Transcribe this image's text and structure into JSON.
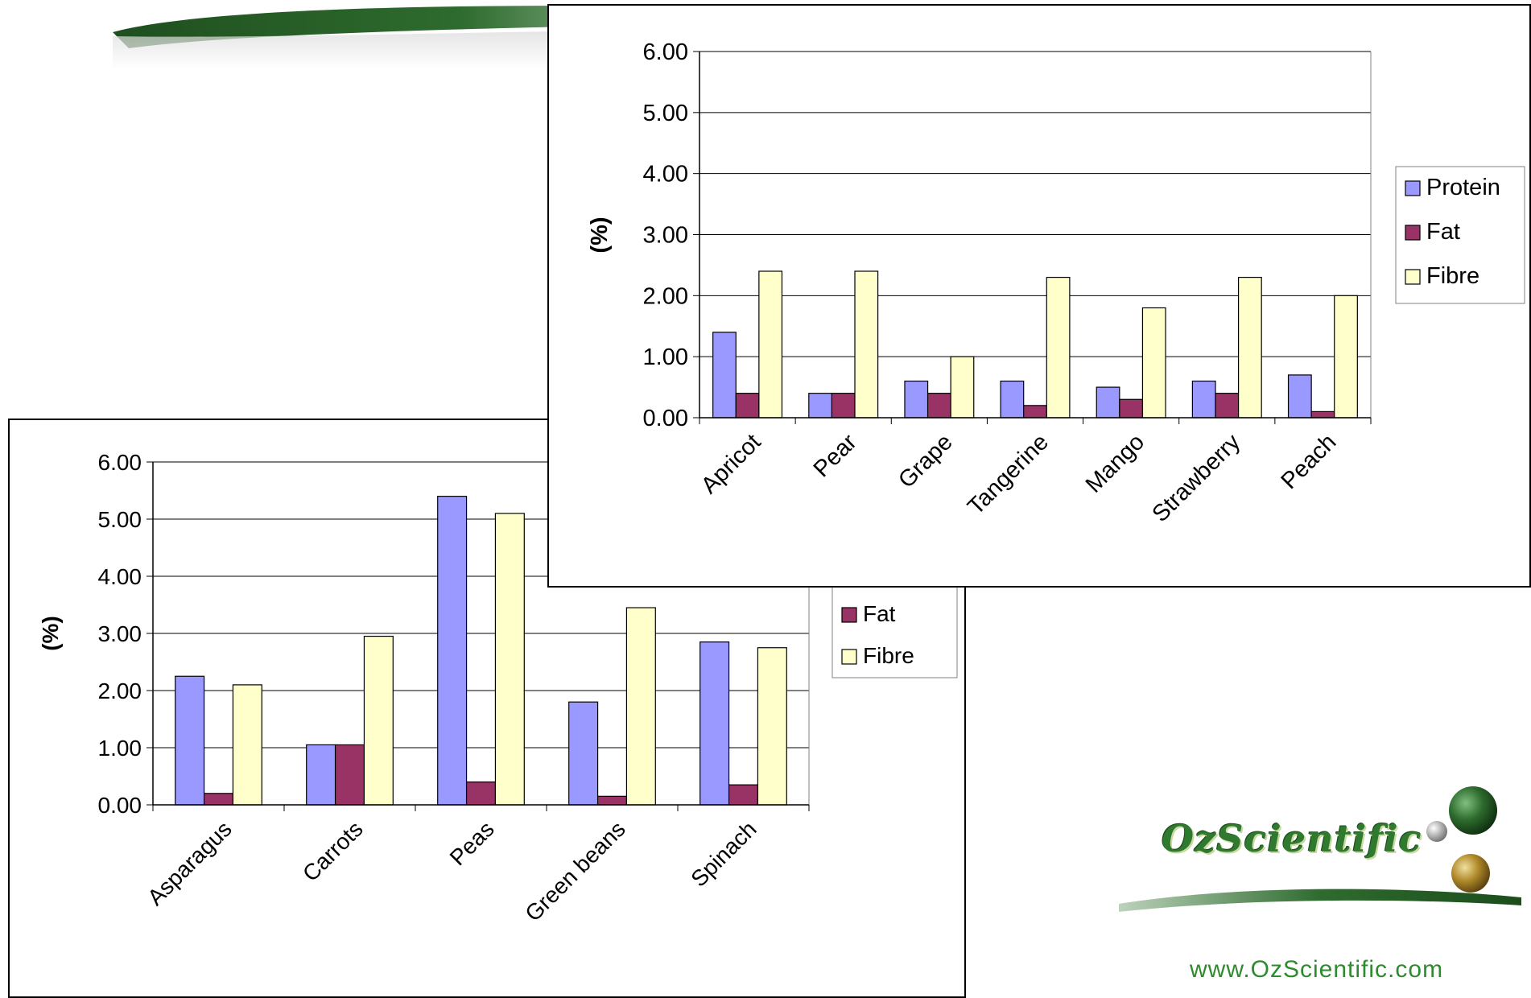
{
  "site_url": "www.OzScientific.com",
  "logo_text": "OzScientific",
  "colors": {
    "protein": "#9999ff",
    "fat": "#993366",
    "fibre": "#ffffcc",
    "gridline": "#000000",
    "brand_green": "#2e8b2e"
  },
  "chart_data": [
    {
      "type": "bar",
      "categories": [
        "Apricot",
        "Pear",
        "Grape",
        "Tangerine",
        "Mango",
        "Strawberry",
        "Peach"
      ],
      "series": [
        {
          "name": "Protein",
          "values": [
            1.4,
            0.4,
            0.6,
            0.6,
            0.5,
            0.6,
            0.7
          ]
        },
        {
          "name": "Fat",
          "values": [
            0.4,
            0.4,
            0.4,
            0.2,
            0.3,
            0.4,
            0.1
          ]
        },
        {
          "name": "Fibre",
          "values": [
            2.4,
            2.4,
            1.0,
            2.3,
            1.8,
            2.3,
            2.0
          ]
        }
      ],
      "ylabel": "(%)",
      "ylim": [
        0,
        6
      ],
      "yticks": [
        "0.00",
        "1.00",
        "2.00",
        "3.00",
        "4.00",
        "5.00",
        "6.00"
      ],
      "grid": true,
      "legend": "right"
    },
    {
      "type": "bar",
      "categories": [
        "Asparagus",
        "Carrots",
        "Peas",
        "Green beans",
        "Spinach"
      ],
      "series": [
        {
          "name": "Protein",
          "values": [
            2.25,
            1.05,
            5.4,
            1.8,
            2.85
          ]
        },
        {
          "name": "Fat",
          "values": [
            0.2,
            1.05,
            0.4,
            0.15,
            0.35
          ]
        },
        {
          "name": "Fibre",
          "values": [
            2.1,
            2.95,
            5.1,
            3.45,
            2.75
          ]
        }
      ],
      "ylabel": "(%)",
      "ylim": [
        0,
        6
      ],
      "yticks": [
        "0.00",
        "1.00",
        "2.00",
        "3.00",
        "4.00",
        "5.00",
        "6.00"
      ],
      "grid": true,
      "legend": "right"
    }
  ]
}
